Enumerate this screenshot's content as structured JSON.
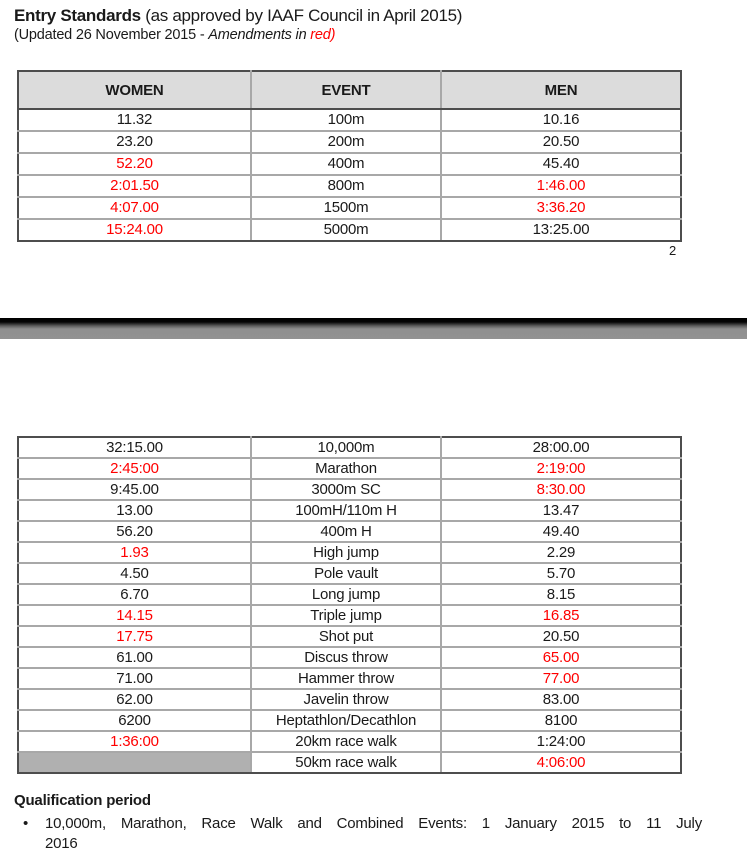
{
  "page": {
    "title_bold": "Entry Standards",
    "title_rest": " (as approved by IAAF Council in April 2015)",
    "subtitle_prefix": "(Updated 26 November 2015 - ",
    "subtitle_italic": "Amendments in ",
    "subtitle_red": "red)",
    "page_number": "2"
  },
  "colors": {
    "accent_red": "#ff0000",
    "table_header_bg": "#dcdcdc",
    "shaded_cell_bg": "#b0b0b0",
    "outer_border": "#4d4d4d",
    "inner_border": "#a8a8a8",
    "separator_bar_top": "#000000",
    "separator_bar_bottom": "#929292"
  },
  "table1": {
    "headers": [
      "WOMEN",
      "EVENT",
      "MEN"
    ],
    "rows": [
      {
        "women": {
          "text": "11.32"
        },
        "event": {
          "text": "100m"
        },
        "men": {
          "text": "10.16"
        }
      },
      {
        "women": {
          "text": "23.20"
        },
        "event": {
          "text": "200m"
        },
        "men": {
          "text": "20.50"
        }
      },
      {
        "women": {
          "text": "52.20",
          "red": true
        },
        "event": {
          "text": "400m"
        },
        "men": {
          "text": "45.40"
        }
      },
      {
        "women": {
          "text": "2:01.50",
          "red": true
        },
        "event": {
          "text": "800m"
        },
        "men": {
          "text": "1:46.00",
          "red": true
        }
      },
      {
        "women": {
          "text": "4:07.00",
          "red": true
        },
        "event": {
          "text": "1500m"
        },
        "men": {
          "text": "3:36.20",
          "red": true
        }
      },
      {
        "women": {
          "text": "15:24.00",
          "red": true
        },
        "event": {
          "text": "5000m"
        },
        "men": {
          "text": "13:25.00"
        }
      }
    ]
  },
  "table2": {
    "rows": [
      {
        "women": {
          "text": "32:15.00"
        },
        "event": {
          "text": "10,000m"
        },
        "men": {
          "text": "28:00.00"
        }
      },
      {
        "women": {
          "text": "2:45:00",
          "red": true
        },
        "event": {
          "text": "Marathon"
        },
        "men": {
          "text": "2:19:00",
          "red": true
        }
      },
      {
        "women": {
          "text": "9:45.00"
        },
        "event": {
          "text": "3000m SC"
        },
        "men": {
          "text": "8:30.00",
          "red": true
        }
      },
      {
        "women": {
          "text": "13.00"
        },
        "event": {
          "text": "100mH/110m H"
        },
        "men": {
          "text": "13.47"
        }
      },
      {
        "women": {
          "text": "56.20"
        },
        "event": {
          "text": "400m H"
        },
        "men": {
          "text": "49.40"
        }
      },
      {
        "women": {
          "text": "1.93",
          "red": true
        },
        "event": {
          "text": "High jump"
        },
        "men": {
          "text": "2.29"
        }
      },
      {
        "women": {
          "text": "4.50"
        },
        "event": {
          "text": "Pole vault"
        },
        "men": {
          "text": "5.70"
        }
      },
      {
        "women": {
          "text": "6.70"
        },
        "event": {
          "text": "Long jump"
        },
        "men": {
          "text": "8.15"
        }
      },
      {
        "women": {
          "text": "14.15",
          "red": true
        },
        "event": {
          "text": "Triple jump"
        },
        "men": {
          "text": "16.85",
          "red": true
        }
      },
      {
        "women": {
          "text": "17.75",
          "red": true
        },
        "event": {
          "text": "Shot put"
        },
        "men": {
          "text": "20.50"
        }
      },
      {
        "women": {
          "text": "61.00"
        },
        "event": {
          "text": "Discus throw"
        },
        "men": {
          "text": "65.00",
          "red": true
        }
      },
      {
        "women": {
          "text": "71.00"
        },
        "event": {
          "text": "Hammer throw"
        },
        "men": {
          "text": "77.00",
          "red": true
        }
      },
      {
        "women": {
          "text": "62.00"
        },
        "event": {
          "text": "Javelin throw"
        },
        "men": {
          "text": "83.00"
        }
      },
      {
        "women": {
          "text": "6200"
        },
        "event": {
          "text": "Heptathlon/Decathlon"
        },
        "men": {
          "text": "8100"
        }
      },
      {
        "women": {
          "text": "1:36:00",
          "red": true
        },
        "event": {
          "text": "20km race walk"
        },
        "men": {
          "text": "1:24:00"
        }
      },
      {
        "women": {
          "text": "",
          "shaded": true
        },
        "event": {
          "text": "50km race walk"
        },
        "men": {
          "text": "4:06:00",
          "red": true
        }
      }
    ]
  },
  "qualification": {
    "heading": "Qualification period",
    "bullet": "•",
    "lines": [
      "10,000m, Marathon, Race Walk and Combined Events: 1 January 2015 to 11 July",
      "2016"
    ]
  }
}
